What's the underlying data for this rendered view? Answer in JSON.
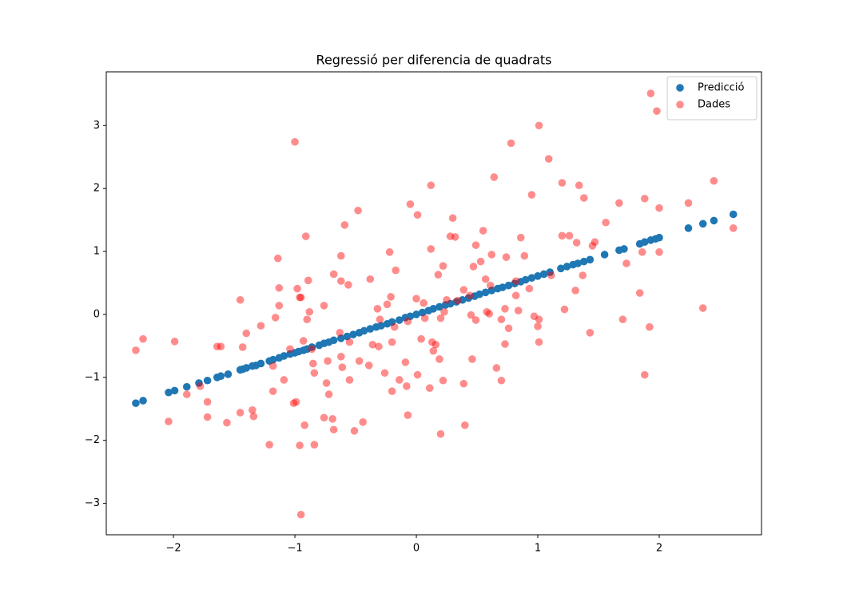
{
  "chart_data": {
    "type": "scatter",
    "title": "Regressió per diferencia de quadrats",
    "xlim": [
      -2.553,
      2.842
    ],
    "ylim": [
      -3.5,
      3.853
    ],
    "xticks": [
      {
        "value": -2,
        "label": "−2"
      },
      {
        "value": -1,
        "label": "−1"
      },
      0,
      1,
      2
    ],
    "yticks": [
      {
        "value": -3,
        "label": "−3"
      },
      {
        "value": -2,
        "label": "−2"
      },
      {
        "value": -1,
        "label": "−1"
      },
      0,
      1,
      2,
      3
    ],
    "legend": "upper right",
    "grid": false,
    "series": [
      {
        "name": "Predicció",
        "color": "#1f77b4",
        "alpha": 1,
        "x": [
          -2.31,
          -2.25,
          -2.04,
          -1.99,
          -1.89,
          -1.79,
          -1.72,
          -1.64,
          -1.61,
          -1.55,
          -1.45,
          -1.43,
          -1.4,
          -1.35,
          -1.32,
          -1.28,
          -1.21,
          -1.18,
          -1.13,
          -1.09,
          -1.04,
          -1.0,
          -0.97,
          -0.93,
          -0.9,
          -0.86,
          -0.8,
          -0.76,
          -0.72,
          -0.68,
          -0.62,
          -0.57,
          -0.52,
          -0.47,
          -0.43,
          -0.38,
          -0.33,
          -0.29,
          -0.24,
          -0.2,
          -0.14,
          -0.09,
          -0.05,
          0.0,
          0.05,
          0.1,
          0.14,
          0.19,
          0.24,
          0.28,
          0.33,
          0.38,
          0.43,
          0.48,
          0.52,
          0.57,
          0.62,
          0.67,
          0.71,
          0.76,
          0.81,
          0.86,
          0.9,
          0.95,
          1.0,
          1.05,
          1.1,
          1.19,
          1.24,
          1.29,
          1.33,
          1.38,
          1.43,
          1.55,
          1.67,
          1.71,
          1.84,
          1.88,
          1.93,
          1.97,
          2.0,
          2.24,
          2.36,
          2.45,
          2.61
        ],
        "values": [
          -1.41,
          -1.37,
          -1.24,
          -1.21,
          -1.15,
          -1.09,
          -1.05,
          -1.0,
          -0.98,
          -0.95,
          -0.88,
          -0.87,
          -0.85,
          -0.82,
          -0.81,
          -0.78,
          -0.74,
          -0.72,
          -0.69,
          -0.66,
          -0.63,
          -0.61,
          -0.59,
          -0.57,
          -0.55,
          -0.52,
          -0.49,
          -0.46,
          -0.44,
          -0.41,
          -0.38,
          -0.35,
          -0.32,
          -0.29,
          -0.26,
          -0.23,
          -0.2,
          -0.18,
          -0.15,
          -0.12,
          -0.09,
          -0.05,
          -0.03,
          0.0,
          0.03,
          0.06,
          0.09,
          0.12,
          0.15,
          0.17,
          0.2,
          0.23,
          0.26,
          0.29,
          0.32,
          0.35,
          0.38,
          0.41,
          0.43,
          0.46,
          0.49,
          0.52,
          0.55,
          0.58,
          0.61,
          0.64,
          0.67,
          0.73,
          0.76,
          0.79,
          0.81,
          0.84,
          0.87,
          0.95,
          1.02,
          1.04,
          1.12,
          1.15,
          1.18,
          1.2,
          1.22,
          1.37,
          1.44,
          1.49,
          1.59
        ]
      },
      {
        "name": "Dades",
        "color": "#ff0000",
        "alpha": 0.45,
        "x": [
          -2.31,
          -2.25,
          -1.99,
          -2.04,
          -1.89,
          -1.78,
          -1.72,
          -1.72,
          -1.64,
          -1.61,
          -1.56,
          -1.45,
          -1.45,
          -1.43,
          -1.4,
          -1.35,
          -1.34,
          -1.28,
          -1.21,
          -1.18,
          -1.18,
          -1.16,
          -1.14,
          -1.13,
          -1.13,
          -1.09,
          -1.04,
          -1.0,
          -1.01,
          -0.99,
          -0.98,
          -0.96,
          -0.96,
          -0.95,
          -0.95,
          -0.93,
          -0.92,
          -0.91,
          -0.9,
          -0.89,
          -0.88,
          -0.86,
          -0.85,
          -0.84,
          -0.84,
          -0.76,
          -0.76,
          -0.74,
          -0.73,
          -0.72,
          -0.69,
          -0.68,
          -0.68,
          -0.63,
          -0.62,
          -0.62,
          -0.62,
          -0.61,
          -0.59,
          -0.56,
          -0.55,
          -0.55,
          -0.51,
          -0.48,
          -0.47,
          -0.44,
          -0.39,
          -0.38,
          -0.36,
          -0.32,
          -0.31,
          -0.3,
          -0.26,
          -0.24,
          -0.22,
          -0.21,
          -0.2,
          -0.2,
          -0.18,
          -0.17,
          -0.14,
          -0.09,
          -0.08,
          -0.07,
          -0.07,
          -0.05,
          0.0,
          0.01,
          0.01,
          0.04,
          0.06,
          0.07,
          0.11,
          0.12,
          0.12,
          0.13,
          0.14,
          0.16,
          0.18,
          0.19,
          0.2,
          0.2,
          0.22,
          0.23,
          0.22,
          0.25,
          0.28,
          0.3,
          0.32,
          0.34,
          0.39,
          0.39,
          0.4,
          0.44,
          0.45,
          0.46,
          0.47,
          0.49,
          0.49,
          0.53,
          0.55,
          0.57,
          0.58,
          0.6,
          0.61,
          0.62,
          0.64,
          0.66,
          0.7,
          0.7,
          0.73,
          0.74,
          0.73,
          0.76,
          0.78,
          0.82,
          0.82,
          0.84,
          0.86,
          0.89,
          0.93,
          0.95,
          0.97,
          1.0,
          1.01,
          1.01,
          1.01,
          1.09,
          1.11,
          1.2,
          1.2,
          1.22,
          1.26,
          1.31,
          1.32,
          1.34,
          1.37,
          1.38,
          1.43,
          1.45,
          1.47,
          1.56,
          1.67,
          1.7,
          1.73,
          1.84,
          1.86,
          1.88,
          1.88,
          1.92,
          1.93,
          1.98,
          2.0,
          2.0,
          2.24,
          2.36,
          2.45,
          2.61
        ],
        "values": [
          -0.57,
          -0.39,
          -0.43,
          -1.7,
          -1.27,
          -1.14,
          -1.39,
          -1.63,
          -0.51,
          -0.51,
          -1.72,
          0.23,
          -1.56,
          -0.52,
          -0.3,
          -1.52,
          -1.62,
          -0.18,
          -2.07,
          -1.22,
          -0.82,
          -0.05,
          0.89,
          0.14,
          0.42,
          -1.04,
          -0.55,
          2.74,
          -1.41,
          -1.39,
          0.41,
          0.27,
          -2.08,
          0.27,
          -3.18,
          -0.42,
          -1.76,
          1.24,
          -0.08,
          0.54,
          0.04,
          -0.55,
          -0.78,
          -0.93,
          -2.07,
          0.14,
          -1.64,
          -1.09,
          -0.74,
          -1.27,
          -1.66,
          0.64,
          -1.83,
          -0.29,
          0.53,
          0.93,
          -0.67,
          -0.84,
          1.42,
          0.47,
          -0.44,
          -1.04,
          -1.85,
          1.65,
          -0.74,
          -1.71,
          -0.81,
          0.56,
          -0.48,
          0.09,
          -0.51,
          -0.08,
          -0.93,
          0.16,
          0.99,
          0.28,
          -0.44,
          -1.22,
          -0.2,
          0.7,
          -1.04,
          -0.76,
          -1.14,
          -1.6,
          -0.11,
          1.75,
          0.25,
          -0.96,
          1.58,
          -0.39,
          0.18,
          -0.06,
          -1.17,
          1.04,
          2.05,
          -0.44,
          -0.58,
          -0.48,
          0.63,
          -0.71,
          -0.06,
          -1.9,
          0.77,
          0.04,
          -1.05,
          0.23,
          1.24,
          1.53,
          1.23,
          0.22,
          -1.1,
          0.39,
          -1.76,
          0.3,
          -0.01,
          -0.71,
          0.76,
          -0.09,
          1.1,
          0.84,
          1.33,
          0.56,
          0.04,
          0.01,
          0.46,
          0.95,
          2.18,
          -0.85,
          -0.08,
          -1.05,
          0.09,
          0.91,
          -0.47,
          -0.22,
          2.72,
          0.3,
          0.53,
          0.06,
          1.22,
          0.93,
          0.41,
          1.9,
          -0.03,
          -0.19,
          3.0,
          -0.08,
          -0.44,
          2.47,
          0.62,
          2.09,
          1.25,
          0.08,
          1.25,
          0.38,
          1.14,
          2.05,
          0.62,
          1.85,
          -0.29,
          1.09,
          1.15,
          1.46,
          1.77,
          -0.08,
          0.81,
          0.34,
          0.99,
          1.84,
          -0.96,
          -0.2,
          3.51,
          3.23,
          1.69,
          0.99,
          1.77,
          0.1,
          2.12,
          1.37
        ]
      }
    ]
  }
}
